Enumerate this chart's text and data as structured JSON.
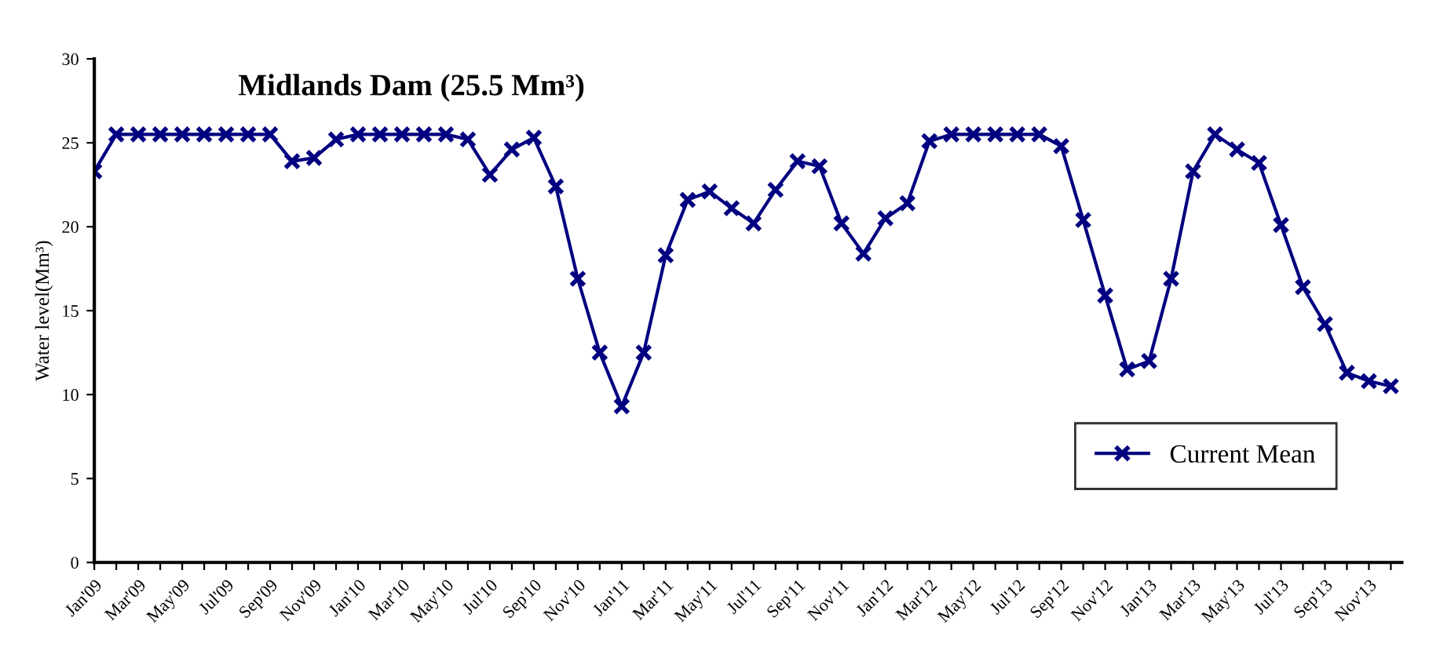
{
  "chart_data": {
    "type": "line",
    "title": "Midlands Dam (25.5 Mm³)",
    "ylabel": "Water level(Mm³)",
    "categories": [
      "Jan'09",
      null,
      "Mar'09",
      null,
      "May'09",
      null,
      "Jul'09",
      null,
      "Sep'09",
      null,
      "Nov'09",
      null,
      "Jan'10",
      null,
      "Mar'10",
      null,
      "May'10",
      null,
      "Jul'10",
      null,
      "Sep'10",
      null,
      "Nov'10",
      null,
      "Jan'11",
      null,
      "Mar'11",
      null,
      "May'11",
      null,
      "Jul'11",
      null,
      "Sep'11",
      null,
      "Nov'11",
      null,
      "Jan'12",
      null,
      "Mar'12",
      null,
      "May'12",
      null,
      "Jul'12",
      null,
      "Sep'12",
      null,
      "Nov'12",
      null,
      "Jan'13",
      null,
      "Mar'13",
      null,
      "May'13",
      null,
      "Jul'13",
      null,
      "Sep'13",
      null,
      "Nov'13",
      null
    ],
    "series": [
      {
        "name": "Current Mean",
        "color": "#000080",
        "values": [
          23.3,
          25.5,
          25.5,
          25.5,
          25.5,
          25.5,
          25.5,
          25.5,
          25.5,
          23.9,
          24.1,
          25.2,
          25.5,
          25.5,
          25.5,
          25.5,
          25.5,
          25.2,
          23.1,
          24.6,
          25.3,
          22.4,
          16.9,
          12.5,
          9.3,
          12.5,
          18.3,
          21.6,
          22.1,
          21.1,
          20.2,
          22.2,
          23.9,
          23.6,
          20.2,
          18.4,
          20.5,
          21.4,
          25.1,
          25.5,
          25.5,
          25.5,
          25.5,
          25.5,
          24.8,
          20.4,
          15.9,
          11.5,
          12.0,
          16.9,
          23.3,
          25.5,
          24.6,
          23.8,
          20.1,
          16.4,
          14.2,
          11.3,
          10.8,
          10.5
        ]
      }
    ],
    "ylim": [
      0,
      30
    ],
    "yticks": [
      0,
      5,
      10,
      15,
      20,
      25,
      30
    ],
    "grid": false,
    "legend": "bottom right",
    "marker": "cross",
    "line_style": "solid"
  }
}
